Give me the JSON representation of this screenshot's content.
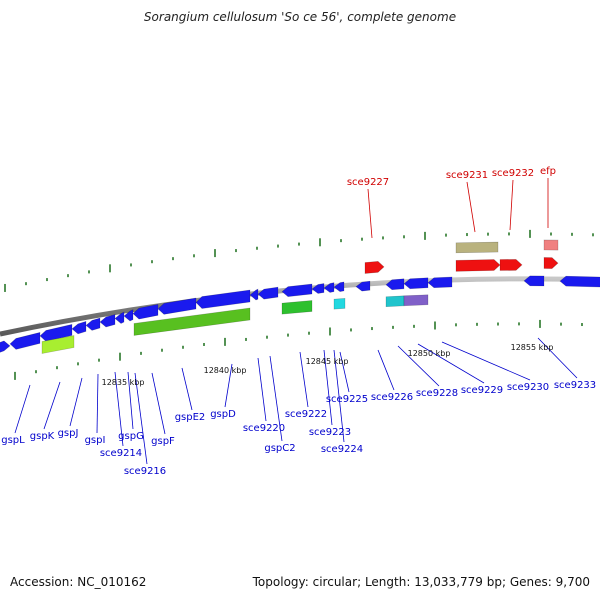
{
  "title": "Sorangium cellulosum 'So ce 56', complete genome",
  "footer": {
    "accession_label": "Accession:",
    "accession": "NC_010162",
    "topology_label": "Topology:",
    "topology": "circular",
    "length_label": "Length:",
    "length": "13,033,779 bp",
    "genes_label": "Genes:",
    "genes": "9,700"
  },
  "scale": [
    "12835 kbp",
    "12840 kbp",
    "12845 kbp",
    "12850 kbp",
    "12855 kbp"
  ],
  "colors": {
    "backbone": "#8a8a8a",
    "gene_label_top": "#d00000",
    "gene_label_bottom": "#0000cc",
    "tick": "#1a6e1a"
  },
  "top_labels": [
    "sce9227",
    "sce9231",
    "sce9232",
    "efp"
  ],
  "bottom_labels": [
    "gspL",
    "gspK",
    "gspJ",
    "gspI",
    "gspG",
    "sce9214",
    "sce9216",
    "gspF",
    "gspE2",
    "gspD",
    "sce9220",
    "gspC2",
    "sce9222",
    "sce9223",
    "sce9224",
    "sce9225",
    "sce9226",
    "sce9228",
    "sce9229",
    "sce9230",
    "sce9233"
  ]
}
